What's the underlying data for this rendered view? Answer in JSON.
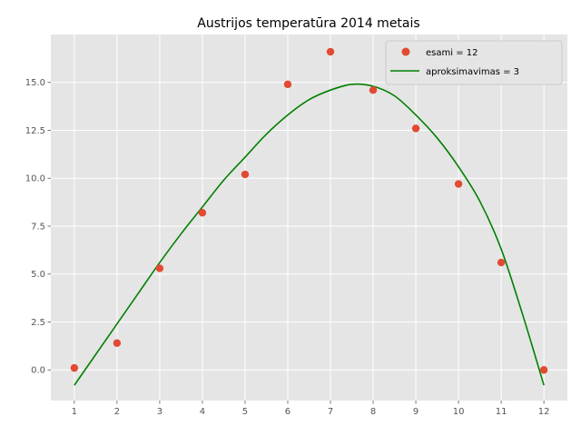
{
  "chart_data": {
    "type": "scatter",
    "title": "Austrijos temperatūra 2014 metais",
    "xlabel": "",
    "ylabel": "",
    "xlim": [
      0.45,
      12.55
    ],
    "ylim": [
      -1.6,
      17.5
    ],
    "x_ticks": [
      1,
      2,
      3,
      4,
      5,
      6,
      7,
      8,
      9,
      10,
      11,
      12
    ],
    "y_ticks": [
      0.0,
      2.5,
      5.0,
      7.5,
      10.0,
      12.5,
      15.0
    ],
    "y_tick_labels": [
      "0.0",
      "2.5",
      "5.0",
      "7.5",
      "10.0",
      "12.5",
      "15.0"
    ],
    "grid": true,
    "legend_position": "top-right",
    "series": [
      {
        "name": "esami = 12",
        "kind": "scatter",
        "color": "#E24A33",
        "x": [
          1,
          2,
          3,
          4,
          5,
          6,
          7,
          8,
          9,
          10,
          11,
          12
        ],
        "y": [
          0.1,
          1.4,
          5.3,
          8.2,
          10.2,
          14.9,
          16.6,
          14.6,
          12.6,
          9.7,
          5.6,
          0.0
        ]
      },
      {
        "name": "aproksimavimas = 3",
        "kind": "line",
        "color": "#008000",
        "x": [
          1,
          1.5,
          2,
          2.5,
          3,
          3.5,
          4,
          4.5,
          5,
          5.5,
          6,
          6.5,
          7,
          7.5,
          8,
          8.5,
          9,
          9.5,
          10,
          10.5,
          11,
          11.5,
          12
        ],
        "y": [
          -0.8,
          0.8,
          2.4,
          4.0,
          5.6,
          7.1,
          8.5,
          9.9,
          11.1,
          12.3,
          13.3,
          14.1,
          14.6,
          14.9,
          14.8,
          14.3,
          13.3,
          12.1,
          10.6,
          8.8,
          6.3,
          2.9,
          -0.8
        ]
      }
    ]
  }
}
